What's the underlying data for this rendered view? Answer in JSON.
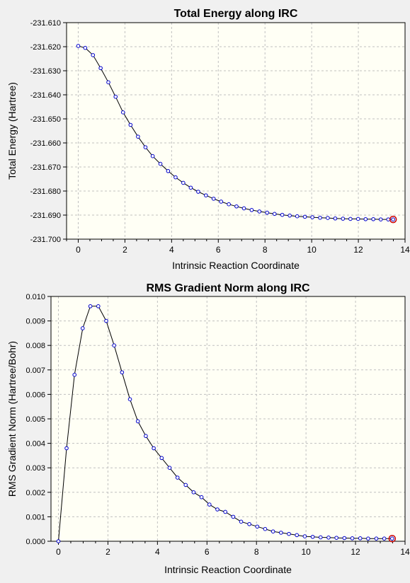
{
  "colors": {
    "window_bg": "#f0f0f0",
    "plot_bg": "#fffff5",
    "grid": "#c0c0c0",
    "line": "#000000",
    "marker": "#0000cc",
    "highlight": "#cc0000"
  },
  "chart_data": [
    {
      "type": "line",
      "title": "Total Energy along IRC",
      "xlabel": "Intrinsic Reaction Coordinate",
      "ylabel": "Total Energy (Hartree)",
      "xlim": [
        -0.5,
        14
      ],
      "ylim": [
        -231.7,
        -231.61
      ],
      "xticks": [
        0,
        2,
        4,
        6,
        8,
        10,
        12,
        14
      ],
      "xtick_labels": [
        "0",
        "2",
        "4",
        "6",
        "8",
        "10",
        "12",
        "14"
      ],
      "yticks": [
        -231.61,
        -231.62,
        -231.63,
        -231.64,
        -231.65,
        -231.66,
        -231.67,
        -231.68,
        -231.69,
        -231.7
      ],
      "ytick_labels": [
        "-231.610",
        "-231.620",
        "-231.630",
        "-231.640",
        "-231.650",
        "-231.660",
        "-231.670",
        "-231.680",
        "-231.690",
        "-231.700"
      ],
      "grid": true,
      "highlighted_point": "last",
      "series": [
        {
          "x": [
            0.0,
            0.3,
            0.63,
            0.96,
            1.29,
            1.6,
            1.92,
            2.24,
            2.56,
            2.88,
            3.19,
            3.52,
            3.85,
            4.17,
            4.5,
            4.82,
            5.14,
            5.47,
            5.8,
            6.12,
            6.45,
            6.78,
            7.1,
            7.43,
            7.76,
            8.09,
            8.41,
            8.74,
            9.06,
            9.38,
            9.71,
            10.03,
            10.36,
            10.69,
            11.01,
            11.34,
            11.66,
            11.99,
            12.31,
            12.64,
            12.96,
            13.28,
            13.49
          ],
          "y": [
            -231.6197,
            -231.6205,
            -231.6235,
            -231.6289,
            -231.6348,
            -231.6408,
            -231.6473,
            -231.6525,
            -231.6574,
            -231.6618,
            -231.6655,
            -231.6687,
            -231.6717,
            -231.6743,
            -231.6766,
            -231.6786,
            -231.6803,
            -231.6818,
            -231.6832,
            -231.6844,
            -231.6855,
            -231.6864,
            -231.6872,
            -231.6879,
            -231.6885,
            -231.689,
            -231.6895,
            -231.6899,
            -231.6902,
            -231.6905,
            -231.6907,
            -231.6909,
            -231.6911,
            -231.6912,
            -231.6914,
            -231.6915,
            -231.6916,
            -231.6916,
            -231.6917,
            -231.6917,
            -231.6918,
            -231.6918,
            -231.6918
          ]
        }
      ]
    },
    {
      "type": "line",
      "title": "RMS Gradient Norm along IRC",
      "xlabel": "Intrinsic Reaction Coordinate",
      "ylabel": "RMS Gradient Norm (Hartree/Bohr)",
      "xlim": [
        -0.3,
        14
      ],
      "ylim": [
        0.0,
        0.01
      ],
      "xticks": [
        0,
        2,
        4,
        6,
        8,
        10,
        12,
        14
      ],
      "xtick_labels": [
        "0",
        "2",
        "4",
        "6",
        "8",
        "10",
        "12",
        "14"
      ],
      "yticks": [
        0.0,
        0.001,
        0.002,
        0.003,
        0.004,
        0.005,
        0.006,
        0.007,
        0.008,
        0.009,
        0.01
      ],
      "ytick_labels": [
        "0.000",
        "0.001",
        "0.002",
        "0.003",
        "0.004",
        "0.005",
        "0.006",
        "0.007",
        "0.008",
        "0.009",
        "0.010"
      ],
      "grid": true,
      "highlighted_point": "last",
      "series": [
        {
          "x": [
            0.0,
            0.33,
            0.65,
            0.98,
            1.29,
            1.61,
            1.93,
            2.25,
            2.57,
            2.89,
            3.21,
            3.53,
            3.85,
            4.17,
            4.49,
            4.81,
            5.14,
            5.46,
            5.78,
            6.1,
            6.42,
            6.74,
            7.06,
            7.38,
            7.71,
            8.03,
            8.35,
            8.67,
            8.99,
            9.31,
            9.63,
            9.95,
            10.27,
            10.59,
            10.91,
            11.23,
            11.55,
            11.87,
            12.19,
            12.51,
            12.84,
            13.16,
            13.48
          ],
          "y": [
            0.0,
            0.0038,
            0.0068,
            0.0087,
            0.0096,
            0.0096,
            0.009,
            0.008,
            0.0069,
            0.0058,
            0.0049,
            0.0043,
            0.0038,
            0.0034,
            0.003,
            0.0026,
            0.0023,
            0.002,
            0.0018,
            0.0015,
            0.0013,
            0.0012,
            0.001,
            0.0008,
            0.0007,
            0.0006,
            0.0005,
            0.0004,
            0.00035,
            0.0003,
            0.00025,
            0.0002,
            0.00018,
            0.00016,
            0.00015,
            0.00014,
            0.00013,
            0.00012,
            0.00012,
            0.00011,
            0.00011,
            0.00011,
            0.00011
          ]
        }
      ]
    }
  ]
}
